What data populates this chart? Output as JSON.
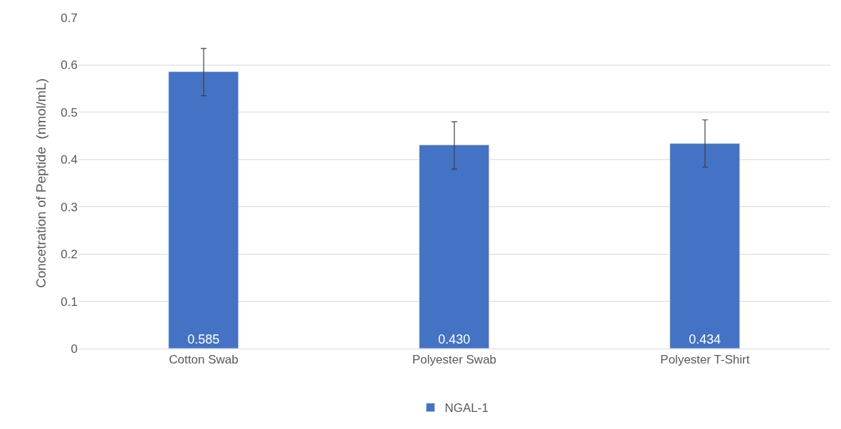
{
  "chart_data": {
    "type": "bar",
    "ylabel": "Concetration of Peptide  (nmol/mL)",
    "categories": [
      "Cotton Swab",
      "Polyester Swab",
      "Polyester T-Shirt"
    ],
    "series": [
      {
        "name": "NGAL-1",
        "color": "#4472c4",
        "values": [
          0.585,
          0.43,
          0.434
        ],
        "value_labels": [
          "0.585",
          "0.430",
          "0.434"
        ],
        "errors": [
          0.05,
          0.05,
          0.05
        ]
      }
    ],
    "ylim": [
      0,
      0.7
    ],
    "yticks": [
      0,
      0.1,
      0.2,
      0.3,
      0.4,
      0.5,
      0.6,
      0.7
    ],
    "grid": "y",
    "legend": "bottom"
  }
}
